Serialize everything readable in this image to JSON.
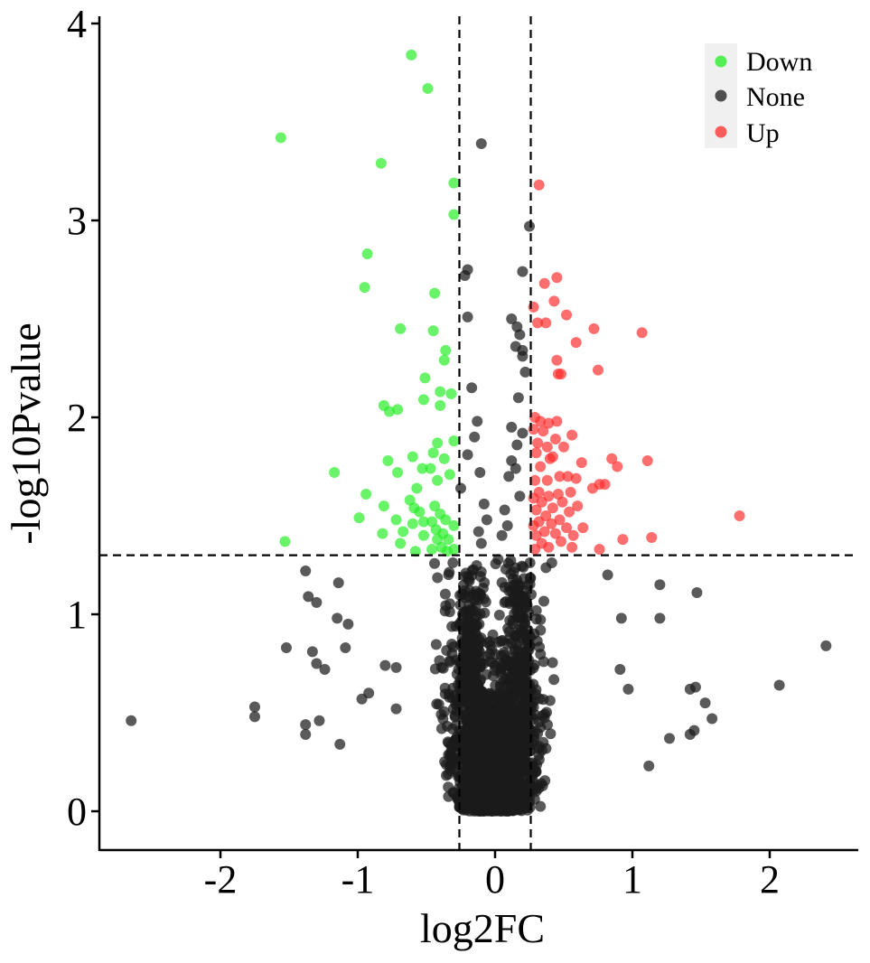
{
  "chart_data": {
    "type": "scatter",
    "title": "",
    "xlabel": "log2FC",
    "ylabel": "-log10Pvalue",
    "xlim": [
      -2.9,
      2.65
    ],
    "ylim": [
      -0.18,
      4.08
    ],
    "x_ticks": [
      -2,
      -1,
      0,
      1,
      2
    ],
    "y_ticks": [
      0,
      1,
      2,
      3,
      4
    ],
    "x_tick_labels": [
      "-2",
      "-1",
      "0",
      "1",
      "2"
    ],
    "y_tick_labels": [
      "0",
      "1",
      "2",
      "3",
      "4"
    ],
    "grid": false,
    "thresholds": {
      "vertical": [
        -0.26,
        0.26
      ],
      "horizontal": 1.3
    },
    "legend": {
      "position": "top-right",
      "entries": [
        {
          "label": "Down",
          "color": "#22ee22"
        },
        {
          "label": "None",
          "color": "#1a1a1a"
        },
        {
          "label": "Up",
          "color": "#ff2a2a"
        }
      ]
    },
    "series": [
      {
        "name": "Down",
        "color": "#22ee22",
        "points": [
          [
            -0.61,
            3.84
          ],
          [
            -0.49,
            3.67
          ],
          [
            -1.56,
            3.42
          ],
          [
            -0.83,
            3.29
          ],
          [
            -0.3,
            3.19
          ],
          [
            -0.3,
            3.03
          ],
          [
            -0.93,
            2.83
          ],
          [
            -0.95,
            2.66
          ],
          [
            -0.44,
            2.63
          ],
          [
            -0.69,
            2.45
          ],
          [
            -0.45,
            2.44
          ],
          [
            -0.36,
            2.34
          ],
          [
            -0.37,
            2.29
          ],
          [
            -0.51,
            2.2
          ],
          [
            -0.4,
            2.13
          ],
          [
            -0.32,
            2.12
          ],
          [
            -0.52,
            2.09
          ],
          [
            -0.4,
            2.06
          ],
          [
            -0.81,
            2.06
          ],
          [
            -0.77,
            2.03
          ],
          [
            -0.71,
            2.04
          ],
          [
            -0.42,
            1.87
          ],
          [
            -0.3,
            1.88
          ],
          [
            -0.45,
            1.82
          ],
          [
            -0.6,
            1.8
          ],
          [
            -0.37,
            1.79
          ],
          [
            -0.78,
            1.78
          ],
          [
            -0.53,
            1.74
          ],
          [
            -0.47,
            1.74
          ],
          [
            -0.33,
            1.71
          ],
          [
            -1.17,
            1.72
          ],
          [
            -0.71,
            1.72
          ],
          [
            -0.42,
            1.68
          ],
          [
            -0.57,
            1.64
          ],
          [
            -0.62,
            1.58
          ],
          [
            -0.94,
            1.61
          ],
          [
            -0.44,
            1.55
          ],
          [
            -0.81,
            1.55
          ],
          [
            -0.59,
            1.54
          ],
          [
            -0.55,
            1.52
          ],
          [
            -0.4,
            1.51
          ],
          [
            -0.36,
            1.48
          ],
          [
            -0.46,
            1.47
          ],
          [
            -0.52,
            1.47
          ],
          [
            -0.6,
            1.46
          ],
          [
            -0.99,
            1.49
          ],
          [
            -0.72,
            1.48
          ],
          [
            -0.3,
            1.45
          ],
          [
            -0.43,
            1.43
          ],
          [
            -0.67,
            1.42
          ],
          [
            -0.38,
            1.41
          ],
          [
            -0.52,
            1.4
          ],
          [
            -0.42,
            1.38
          ],
          [
            -0.34,
            1.38
          ],
          [
            -0.82,
            1.41
          ],
          [
            -1.53,
            1.37
          ],
          [
            -0.69,
            1.36
          ],
          [
            -0.39,
            1.34
          ],
          [
            -0.3,
            1.33
          ],
          [
            -0.58,
            1.32
          ],
          [
            -0.46,
            1.33
          ],
          [
            -0.35,
            1.32
          ]
        ]
      },
      {
        "name": "Up",
        "color": "#ff2a2a",
        "points": [
          [
            0.32,
            3.18
          ],
          [
            0.45,
            2.71
          ],
          [
            0.36,
            2.68
          ],
          [
            0.43,
            2.59
          ],
          [
            0.28,
            2.56
          ],
          [
            0.52,
            2.52
          ],
          [
            0.37,
            2.48
          ],
          [
            0.31,
            2.48
          ],
          [
            0.72,
            2.45
          ],
          [
            1.07,
            2.43
          ],
          [
            0.59,
            2.38
          ],
          [
            0.45,
            2.29
          ],
          [
            0.75,
            2.24
          ],
          [
            0.48,
            2.22
          ],
          [
            0.46,
            2.22
          ],
          [
            0.29,
            2.0
          ],
          [
            0.33,
            1.98
          ],
          [
            0.45,
            1.98
          ],
          [
            0.39,
            1.97
          ],
          [
            0.28,
            1.94
          ],
          [
            0.35,
            1.93
          ],
          [
            0.56,
            1.91
          ],
          [
            0.44,
            1.89
          ],
          [
            0.31,
            1.87
          ],
          [
            0.38,
            1.85
          ],
          [
            0.5,
            1.85
          ],
          [
            0.3,
            1.82
          ],
          [
            0.42,
            1.8
          ],
          [
            0.4,
            1.79
          ],
          [
            0.85,
            1.79
          ],
          [
            1.11,
            1.78
          ],
          [
            0.63,
            1.77
          ],
          [
            0.89,
            1.75
          ],
          [
            0.33,
            1.75
          ],
          [
            0.47,
            1.7
          ],
          [
            0.53,
            1.7
          ],
          [
            0.29,
            1.68
          ],
          [
            0.38,
            1.68
          ],
          [
            0.59,
            1.69
          ],
          [
            0.76,
            1.66
          ],
          [
            0.8,
            1.66
          ],
          [
            0.71,
            1.64
          ],
          [
            0.55,
            1.62
          ],
          [
            0.32,
            1.62
          ],
          [
            0.46,
            1.61
          ],
          [
            0.39,
            1.6
          ],
          [
            0.28,
            1.59
          ],
          [
            0.34,
            1.57
          ],
          [
            0.49,
            1.57
          ],
          [
            0.6,
            1.55
          ],
          [
            0.42,
            1.54
          ],
          [
            0.3,
            1.53
          ],
          [
            0.54,
            1.52
          ],
          [
            0.37,
            1.5
          ],
          [
            1.78,
            1.5
          ],
          [
            0.47,
            1.48
          ],
          [
            0.32,
            1.47
          ],
          [
            0.41,
            1.46
          ],
          [
            0.28,
            1.45
          ],
          [
            0.64,
            1.44
          ],
          [
            0.52,
            1.44
          ],
          [
            0.36,
            1.42
          ],
          [
            0.44,
            1.41
          ],
          [
            0.3,
            1.4
          ],
          [
            0.57,
            1.4
          ],
          [
            1.14,
            1.39
          ],
          [
            0.93,
            1.38
          ],
          [
            0.48,
            1.37
          ],
          [
            0.34,
            1.36
          ],
          [
            0.39,
            1.34
          ],
          [
            0.29,
            1.33
          ],
          [
            0.76,
            1.33
          ],
          [
            0.56,
            1.34
          ]
        ]
      },
      {
        "name": "None",
        "color": "#1a1a1a",
        "points": [
          [
            -0.1,
            3.39
          ],
          [
            0.25,
            2.97
          ],
          [
            -0.2,
            2.75
          ],
          [
            -0.22,
            2.72
          ],
          [
            0.2,
            2.74
          ],
          [
            -0.2,
            2.51
          ],
          [
            0.16,
            2.46
          ],
          [
            0.12,
            2.5
          ],
          [
            0.18,
            2.42
          ],
          [
            -0.17,
            2.15
          ],
          [
            0.15,
            2.36
          ],
          [
            0.2,
            2.31
          ],
          [
            0.2,
            2.34
          ],
          [
            0.22,
            2.23
          ],
          [
            0.17,
            2.1
          ],
          [
            -0.13,
            1.98
          ],
          [
            0.12,
            1.95
          ],
          [
            0.2,
            1.92
          ],
          [
            -0.15,
            1.9
          ],
          [
            -0.2,
            1.81
          ],
          [
            0.16,
            1.86
          ],
          [
            0.12,
            1.78
          ],
          [
            -0.11,
            1.72
          ],
          [
            0.1,
            1.7
          ],
          [
            0.15,
            1.74
          ],
          [
            -0.25,
            1.64
          ],
          [
            0.18,
            1.6
          ],
          [
            -0.08,
            1.56
          ],
          [
            0.07,
            1.53
          ],
          [
            -0.06,
            1.48
          ],
          [
            0.09,
            1.45
          ],
          [
            -0.12,
            1.42
          ],
          [
            0.05,
            1.4
          ],
          [
            -0.1,
            1.36
          ],
          [
            -2.65,
            0.46
          ],
          [
            -1.75,
            0.53
          ],
          [
            -1.75,
            0.48
          ],
          [
            -1.38,
            0.44
          ],
          [
            -1.38,
            0.39
          ],
          [
            -1.13,
            0.34
          ],
          [
            -1.28,
            0.46
          ],
          [
            -1.33,
            0.81
          ],
          [
            -1.52,
            0.83
          ],
          [
            -1.3,
            0.75
          ],
          [
            -1.24,
            0.72
          ],
          [
            -1.15,
            0.98
          ],
          [
            -1.09,
            0.83
          ],
          [
            -1.07,
            0.95
          ],
          [
            -1.14,
            1.16
          ],
          [
            -1.3,
            1.06
          ],
          [
            -1.36,
            1.09
          ],
          [
            -1.38,
            1.22
          ],
          [
            -0.8,
            0.74
          ],
          [
            -0.72,
            0.73
          ],
          [
            -0.92,
            0.6
          ],
          [
            -0.72,
            0.52
          ],
          [
            -0.97,
            0.57
          ],
          [
            2.41,
            0.84
          ],
          [
            2.07,
            0.64
          ],
          [
            1.58,
            0.47
          ],
          [
            1.53,
            0.55
          ],
          [
            1.46,
            0.63
          ],
          [
            1.42,
            0.62
          ],
          [
            1.45,
            0.41
          ],
          [
            1.42,
            0.39
          ],
          [
            1.27,
            0.37
          ],
          [
            1.12,
            0.23
          ],
          [
            1.47,
            1.11
          ],
          [
            1.2,
            1.15
          ],
          [
            1.2,
            0.98
          ],
          [
            0.92,
            0.98
          ],
          [
            0.97,
            0.62
          ],
          [
            0.82,
            1.2
          ],
          [
            0.91,
            0.72
          ],
          [
            0.02,
            0.05
          ],
          [
            -0.02,
            0.1
          ],
          [
            0.05,
            0.15
          ],
          [
            -0.05,
            0.2
          ]
        ]
      }
    ]
  }
}
